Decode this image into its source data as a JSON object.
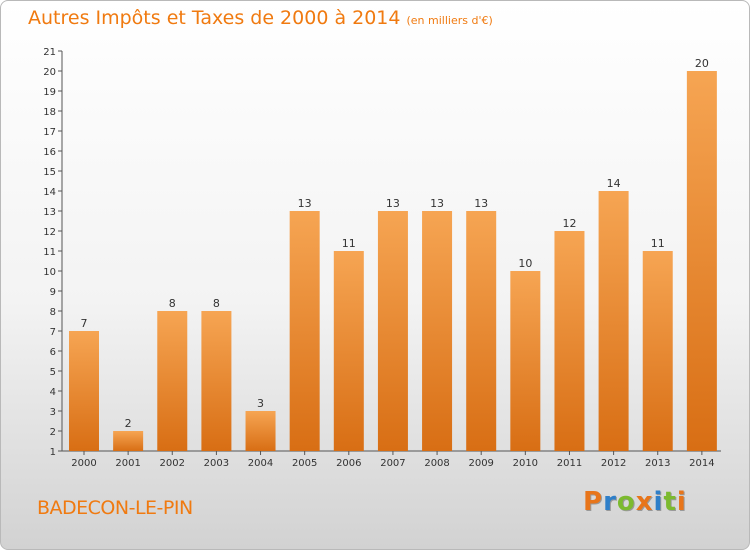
{
  "title": "Autres Impôts et Taxes de 2000 à 2014",
  "unit": "(en milliers d'€)",
  "commune": "BADECON-LE-PIN",
  "logo": {
    "text": "Proxiti",
    "letter_colors": [
      "#e8751a",
      "#2e7fc9",
      "#7cba2f",
      "#e8751a",
      "#2e7fc9",
      "#7cba2f",
      "#e8751a"
    ]
  },
  "colors": {
    "bar_light": "#f6a553",
    "bar_dark": "#d86e14",
    "title": "#f07a10"
  },
  "chart_data": {
    "type": "bar",
    "title": "Autres Impôts et Taxes de 2000 à 2014",
    "subtitle": "(en milliers d'€)",
    "categories": [
      "2000",
      "2001",
      "2002",
      "2003",
      "2004",
      "2005",
      "2006",
      "2007",
      "2008",
      "2009",
      "2010",
      "2011",
      "2012",
      "2013",
      "2014"
    ],
    "values": [
      7,
      2,
      8,
      8,
      3,
      13,
      11,
      13,
      13,
      13,
      10,
      12,
      14,
      11,
      20
    ],
    "ylim": [
      1,
      21
    ],
    "yticks": [
      1,
      2,
      3,
      4,
      5,
      6,
      7,
      8,
      9,
      10,
      11,
      12,
      13,
      14,
      15,
      16,
      17,
      18,
      19,
      20,
      21
    ],
    "grid": false,
    "legend": "none"
  }
}
